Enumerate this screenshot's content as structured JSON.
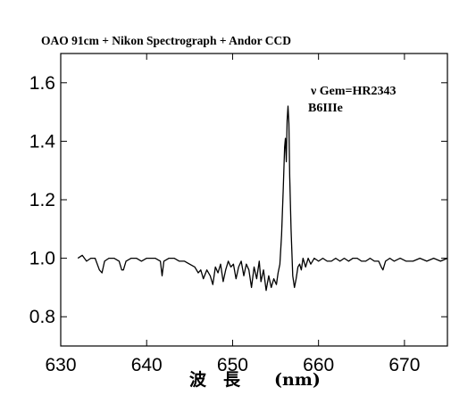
{
  "chart_data": {
    "type": "line",
    "title": "OAO 91cm + Nikon Spectrograph + Andor CCD",
    "xlabel": "波　長　　(nm)",
    "ylabel": "",
    "xlim": [
      630,
      675
    ],
    "ylim": [
      0.7,
      1.7
    ],
    "xticks": [
      630,
      640,
      650,
      660,
      670
    ],
    "yticks": [
      0.8,
      1.0,
      1.2,
      1.4,
      1.6
    ],
    "xtick_labels": [
      "630",
      "640",
      "650",
      "660",
      "670"
    ],
    "ytick_labels": [
      "0.8",
      "1.0",
      "1.2",
      "1.4",
      "1.6"
    ],
    "annotations": [
      "ν Gem=HR2343",
      "B6IIIe"
    ],
    "grid": false,
    "series": [
      {
        "x": [
          632.0,
          632.5,
          633.0,
          633.5,
          634.0,
          634.5,
          634.8,
          635.1,
          635.6,
          636.2,
          636.8,
          637.1,
          637.3,
          637.6,
          638.2,
          638.8,
          639.4,
          640.0,
          640.5,
          641.0,
          641.6,
          641.8,
          642.0,
          642.6,
          643.2,
          643.8,
          644.4,
          645.0,
          645.6,
          646.0,
          646.3,
          646.6,
          647.0,
          647.4,
          647.7,
          648.0,
          648.3,
          648.6,
          648.9,
          649.2,
          649.5,
          649.8,
          650.1,
          650.4,
          650.7,
          651.0,
          651.3,
          651.6,
          651.9,
          652.2,
          652.5,
          652.8,
          653.1,
          653.3,
          653.6,
          653.9,
          654.2,
          654.5,
          654.8,
          655.1,
          655.3,
          655.5,
          655.7,
          655.9,
          656.05,
          656.15,
          656.25,
          656.35,
          656.45,
          656.55,
          656.65,
          656.8,
          657.0,
          657.2,
          657.4,
          657.6,
          657.8,
          658.0,
          658.2,
          658.5,
          658.8,
          659.1,
          659.5,
          660.0,
          660.5,
          661.0,
          661.5,
          662.0,
          662.5,
          663.0,
          663.5,
          664.0,
          664.5,
          665.0,
          665.5,
          666.0,
          666.5,
          667.0,
          667.3,
          667.5,
          667.8,
          668.3,
          668.8,
          669.5,
          670.2,
          671.0,
          671.8,
          672.6,
          673.4,
          674.2,
          675.0
        ],
        "y": [
          1.0,
          1.01,
          0.99,
          1.0,
          1.0,
          0.96,
          0.95,
          0.99,
          1.0,
          1.0,
          0.99,
          0.96,
          0.96,
          0.99,
          1.0,
          1.0,
          0.99,
          1.0,
          1.0,
          1.0,
          0.99,
          0.94,
          0.99,
          1.0,
          1.0,
          0.99,
          0.99,
          0.98,
          0.97,
          0.95,
          0.96,
          0.93,
          0.96,
          0.94,
          0.91,
          0.97,
          0.95,
          0.98,
          0.92,
          0.96,
          0.99,
          0.97,
          0.98,
          0.93,
          0.97,
          0.99,
          0.94,
          0.98,
          0.96,
          0.9,
          0.97,
          0.93,
          0.99,
          0.92,
          0.96,
          0.89,
          0.94,
          0.9,
          0.93,
          0.91,
          0.95,
          0.98,
          1.08,
          1.24,
          1.38,
          1.41,
          1.33,
          1.47,
          1.52,
          1.46,
          1.28,
          1.1,
          0.94,
          0.9,
          0.93,
          0.97,
          0.98,
          0.96,
          1.0,
          0.97,
          1.0,
          0.98,
          1.0,
          0.99,
          1.0,
          0.99,
          0.99,
          1.0,
          0.99,
          1.0,
          0.99,
          1.0,
          1.0,
          0.99,
          0.99,
          1.0,
          0.99,
          0.99,
          0.97,
          0.96,
          0.99,
          1.0,
          0.99,
          1.0,
          0.99,
          0.99,
          1.0,
          0.99,
          1.0,
          0.99,
          1.0
        ]
      }
    ]
  }
}
